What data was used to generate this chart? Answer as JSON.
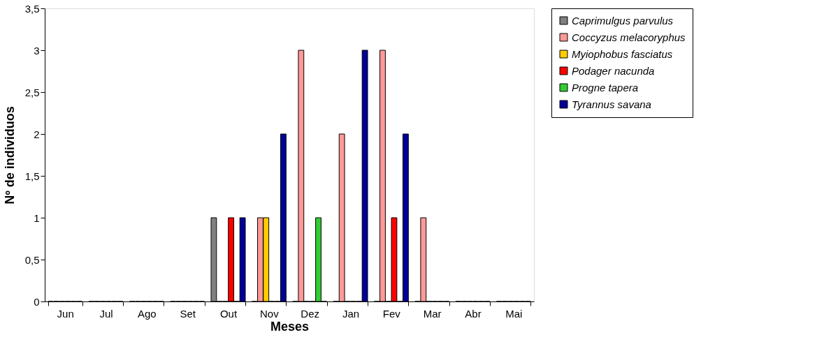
{
  "chart_data": {
    "type": "bar",
    "xlabel": "Meses",
    "ylabel": "Nº de individuos",
    "categories": [
      "Jun",
      "Jul",
      "Ago",
      "Set",
      "Out",
      "Nov",
      "Dez",
      "Jan",
      "Fev",
      "Mar",
      "Abr",
      "Mai"
    ],
    "series": [
      {
        "name": "Caprimulgus parvulus",
        "color": "#808080",
        "values": [
          0,
          0,
          0,
          0,
          1,
          0,
          0,
          0,
          0,
          0,
          0,
          0
        ]
      },
      {
        "name": "Coccyzus melacoryphus",
        "color": "#ff9999",
        "values": [
          0,
          0,
          0,
          0,
          0,
          1,
          3,
          2,
          3,
          1,
          0,
          0
        ]
      },
      {
        "name": "Myiophobus fasciatus",
        "color": "#ffcc00",
        "values": [
          0,
          0,
          0,
          0,
          0,
          1,
          0,
          0,
          0,
          0,
          0,
          0
        ]
      },
      {
        "name": "Podager nacunda",
        "color": "#ff0000",
        "values": [
          0,
          0,
          0,
          0,
          1,
          0,
          0,
          0,
          1,
          0,
          0,
          0
        ]
      },
      {
        "name": "Progne tapera",
        "color": "#33cc33",
        "values": [
          0,
          0,
          0,
          0,
          0,
          0,
          1,
          0,
          0,
          0,
          0,
          0
        ]
      },
      {
        "name": "Tyrannus savana",
        "color": "#000099",
        "values": [
          0,
          0,
          0,
          0,
          1,
          2,
          0,
          3,
          2,
          0,
          0,
          0
        ]
      }
    ],
    "ylim": [
      0,
      3.5
    ],
    "yticks": [
      0,
      {
        "value": 0.5,
        "label": "0,5"
      },
      1,
      {
        "value": 1.5,
        "label": "1,5"
      },
      2,
      {
        "value": 2.5,
        "label": "2,5"
      },
      3,
      {
        "value": 3.5,
        "label": "3,5"
      }
    ],
    "grid": false,
    "legend": "right"
  }
}
